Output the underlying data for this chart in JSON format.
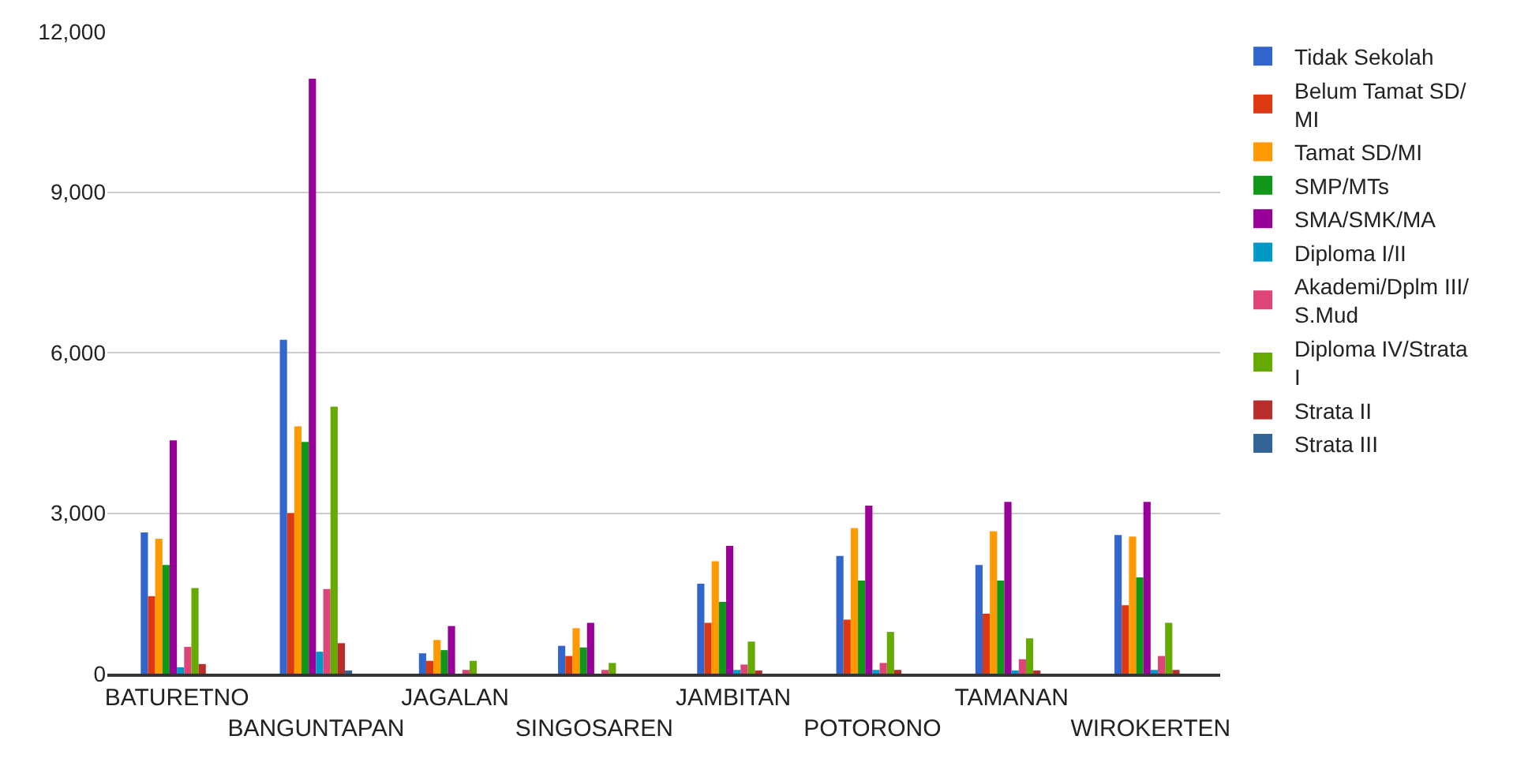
{
  "chart_data": {
    "type": "bar",
    "categories": [
      "BATURETNO",
      "BANGUNTAPAN",
      "JAGALAN",
      "SINGOSAREN",
      "JAMBITAN",
      "POTORONO",
      "TAMANAN",
      "WIROKERTEN"
    ],
    "series": [
      {
        "name": "Tidak Sekolah",
        "color": "#3366cc",
        "values": [
          2640,
          6240,
          380,
          520,
          1680,
          2200,
          2030,
          2590
        ]
      },
      {
        "name": "Belum Tamat SD/MI",
        "color": "#dc3912",
        "values": [
          1450,
          3000,
          240,
          330,
          950,
          1010,
          1120,
          1280
        ]
      },
      {
        "name": "Tamat SD/MI",
        "color": "#ff9900",
        "values": [
          2520,
          4620,
          630,
          850,
          2100,
          2720,
          2660,
          2560
        ]
      },
      {
        "name": "SMP/MTs",
        "color": "#109618",
        "values": [
          2030,
          4330,
          440,
          490,
          1340,
          1740,
          1740,
          1800
        ]
      },
      {
        "name": "SMA/SMK/MA",
        "color": "#990099",
        "values": [
          4360,
          11120,
          890,
          950,
          2390,
          3140,
          3210,
          3210
        ]
      },
      {
        "name": "Diploma I/II",
        "color": "#0099c6",
        "values": [
          120,
          410,
          0,
          0,
          70,
          70,
          60,
          70
        ]
      },
      {
        "name": "Akademi/Dplm III/S.Mud",
        "color": "#dd4477",
        "values": [
          500,
          1580,
          70,
          70,
          170,
          200,
          270,
          330
        ]
      },
      {
        "name": "Diploma IV/Strata I",
        "color": "#66aa00",
        "values": [
          1600,
          4990,
          240,
          200,
          600,
          780,
          660,
          950
        ]
      },
      {
        "name": "Strata II",
        "color": "#b82e2e",
        "values": [
          180,
          570,
          0,
          0,
          50,
          70,
          50,
          70
        ]
      },
      {
        "name": "Strata III",
        "color": "#316395",
        "values": [
          0,
          50,
          0,
          0,
          0,
          0,
          0,
          0
        ]
      }
    ],
    "ylim": [
      0,
      12000
    ],
    "yticks": [
      {
        "value": 0,
        "label": "0"
      },
      {
        "value": 3000,
        "label": "3,000"
      },
      {
        "value": 6000,
        "label": "6,000"
      },
      {
        "value": 9000,
        "label": "9,000"
      },
      {
        "value": 12000,
        "label": "12,000"
      }
    ],
    "grid": "y",
    "legend": "right"
  }
}
